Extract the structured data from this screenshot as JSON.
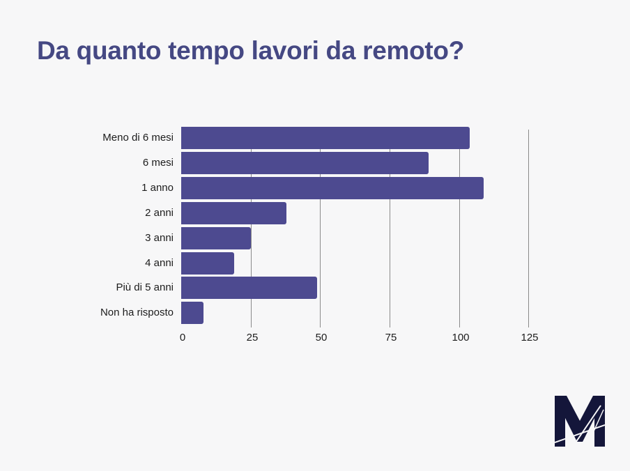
{
  "title": "Da quanto tempo lavori da remoto?",
  "colors": {
    "bar": "#4d4a90",
    "title": "#454883",
    "background": "#f7f7f8",
    "logo": "#14163a"
  },
  "logo": {
    "icon": "m-logo-icon"
  },
  "chart_data": {
    "type": "bar",
    "orientation": "horizontal",
    "title": "Da quanto tempo lavori da remoto?",
    "xlabel": "",
    "ylabel": "",
    "categories": [
      "Meno di 6 mesi",
      "6 mesi",
      "1 anno",
      "2 anni",
      "3 anni",
      "4 anni",
      "Più di 5 anni",
      "Non ha risposto"
    ],
    "values": [
      104,
      89,
      109,
      38,
      25,
      19,
      49,
      8
    ],
    "xlim": [
      0,
      125
    ],
    "xticks": [
      "0",
      "25",
      "50",
      "75",
      "100",
      "125"
    ],
    "grid": "vertical",
    "legend": "none"
  }
}
